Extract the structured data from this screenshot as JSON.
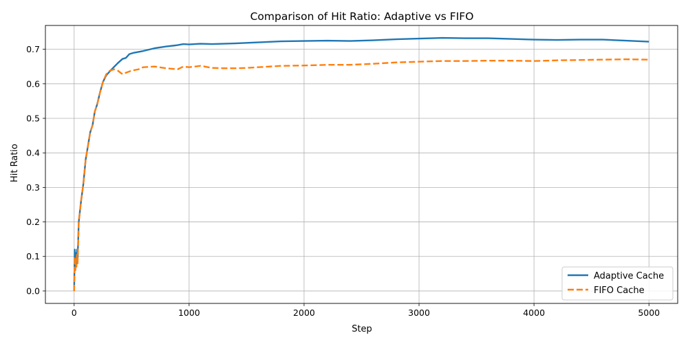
{
  "chart_data": {
    "type": "line",
    "title": "Comparison of Hit Ratio: Adaptive vs FIFO",
    "xlabel": "Step",
    "ylabel": "Hit Ratio",
    "xlim": [
      -250,
      5250
    ],
    "ylim": [
      -0.036,
      0.769
    ],
    "xticks": [
      0,
      1000,
      2000,
      3000,
      4000,
      5000
    ],
    "xtick_labels": [
      "0",
      "1000",
      "2000",
      "3000",
      "4000",
      "5000"
    ],
    "yticks": [
      0.0,
      0.1,
      0.2,
      0.3,
      0.4,
      0.5,
      0.6,
      0.7
    ],
    "ytick_labels": [
      "0.0",
      "0.1",
      "0.2",
      "0.3",
      "0.4",
      "0.5",
      "0.6",
      "0.7"
    ],
    "grid": true,
    "legend_position": "lower-right",
    "series": [
      {
        "name": "Adaptive Cache",
        "color": "#1f77b4",
        "style": "solid",
        "points": [
          [
            0,
            0.0
          ],
          [
            5,
            0.12
          ],
          [
            10,
            0.06
          ],
          [
            15,
            0.11
          ],
          [
            20,
            0.08
          ],
          [
            25,
            0.12
          ],
          [
            30,
            0.09
          ],
          [
            40,
            0.2
          ],
          [
            50,
            0.23
          ],
          [
            60,
            0.26
          ],
          [
            80,
            0.31
          ],
          [
            100,
            0.38
          ],
          [
            120,
            0.42
          ],
          [
            140,
            0.46
          ],
          [
            160,
            0.48
          ],
          [
            180,
            0.52
          ],
          [
            200,
            0.54
          ],
          [
            225,
            0.575
          ],
          [
            250,
            0.605
          ],
          [
            280,
            0.625
          ],
          [
            310,
            0.636
          ],
          [
            350,
            0.65
          ],
          [
            380,
            0.66
          ],
          [
            420,
            0.672
          ],
          [
            450,
            0.675
          ],
          [
            480,
            0.686
          ],
          [
            520,
            0.69
          ],
          [
            600,
            0.695
          ],
          [
            700,
            0.703
          ],
          [
            800,
            0.708
          ],
          [
            900,
            0.712
          ],
          [
            950,
            0.715
          ],
          [
            1000,
            0.714
          ],
          [
            1100,
            0.716
          ],
          [
            1200,
            0.715
          ],
          [
            1400,
            0.717
          ],
          [
            1600,
            0.72
          ],
          [
            1800,
            0.723
          ],
          [
            2000,
            0.724
          ],
          [
            2200,
            0.725
          ],
          [
            2400,
            0.724
          ],
          [
            2600,
            0.726
          ],
          [
            2800,
            0.729
          ],
          [
            3000,
            0.731
          ],
          [
            3200,
            0.733
          ],
          [
            3400,
            0.732
          ],
          [
            3600,
            0.732
          ],
          [
            3800,
            0.73
          ],
          [
            4000,
            0.728
          ],
          [
            4200,
            0.727
          ],
          [
            4400,
            0.728
          ],
          [
            4600,
            0.728
          ],
          [
            4800,
            0.725
          ],
          [
            5000,
            0.722
          ]
        ]
      },
      {
        "name": "FIFO Cache",
        "color": "#ff7f0e",
        "style": "dashed",
        "points": [
          [
            0,
            0.0
          ],
          [
            5,
            0.1
          ],
          [
            10,
            0.06
          ],
          [
            15,
            0.09
          ],
          [
            20,
            0.07
          ],
          [
            25,
            0.11
          ],
          [
            30,
            0.08
          ],
          [
            40,
            0.2
          ],
          [
            50,
            0.23
          ],
          [
            60,
            0.26
          ],
          [
            80,
            0.31
          ],
          [
            100,
            0.38
          ],
          [
            120,
            0.42
          ],
          [
            140,
            0.46
          ],
          [
            160,
            0.48
          ],
          [
            180,
            0.52
          ],
          [
            200,
            0.54
          ],
          [
            225,
            0.575
          ],
          [
            250,
            0.605
          ],
          [
            280,
            0.628
          ],
          [
            310,
            0.638
          ],
          [
            350,
            0.642
          ],
          [
            380,
            0.638
          ],
          [
            420,
            0.628
          ],
          [
            450,
            0.632
          ],
          [
            500,
            0.638
          ],
          [
            560,
            0.642
          ],
          [
            600,
            0.648
          ],
          [
            700,
            0.65
          ],
          [
            800,
            0.645
          ],
          [
            900,
            0.642
          ],
          [
            950,
            0.65
          ],
          [
            1000,
            0.648
          ],
          [
            1100,
            0.652
          ],
          [
            1200,
            0.646
          ],
          [
            1300,
            0.645
          ],
          [
            1400,
            0.645
          ],
          [
            1500,
            0.646
          ],
          [
            1600,
            0.648
          ],
          [
            1800,
            0.652
          ],
          [
            2000,
            0.653
          ],
          [
            2200,
            0.655
          ],
          [
            2400,
            0.655
          ],
          [
            2600,
            0.658
          ],
          [
            2800,
            0.662
          ],
          [
            3000,
            0.664
          ],
          [
            3200,
            0.666
          ],
          [
            3400,
            0.666
          ],
          [
            3600,
            0.667
          ],
          [
            3800,
            0.667
          ],
          [
            4000,
            0.666
          ],
          [
            4200,
            0.668
          ],
          [
            4400,
            0.669
          ],
          [
            4600,
            0.67
          ],
          [
            4800,
            0.671
          ],
          [
            5000,
            0.67
          ]
        ]
      }
    ]
  }
}
